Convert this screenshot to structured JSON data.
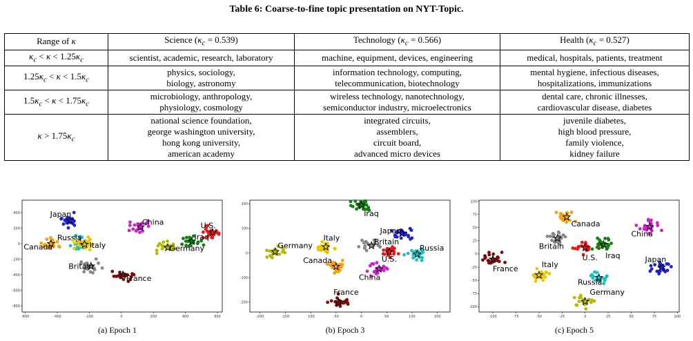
{
  "table": {
    "caption": "Table 6: Coarse-to-fine topic presentation on NYT-Topic.",
    "headers": [
      "Range of κ",
      "Science (κ_c = 0.539)",
      "Technology (κ_c = 0.566)",
      "Health (κ_c = 0.527)"
    ],
    "rows": [
      {
        "range": "κ_c < κ < 1.25κ_c",
        "science": [
          "scientist, academic, research, laboratory"
        ],
        "technology": [
          "machine, equipment, devices, engineering"
        ],
        "health": [
          "medical, hospitals, patients, treatment"
        ]
      },
      {
        "range": "1.25κ_c < κ < 1.5κ_c",
        "science": [
          "physics, sociology,",
          "biology, astronomy"
        ],
        "technology": [
          "information technology, computing,",
          "telecommunication, biotechnology"
        ],
        "health": [
          "mental hygiene, infectious diseases,",
          "hospitalizations, immunizations"
        ]
      },
      {
        "range": "1.5κ_c < κ < 1.75κ_c",
        "science": [
          "microbiology, anthropology,",
          "physiology, cosmology"
        ],
        "technology": [
          "wireless technology, nanotechnology,",
          "semiconductor industry, microelectronics"
        ],
        "health": [
          "dental care, chronic illnesses,",
          "cardiovascular disease, diabetes"
        ]
      },
      {
        "range": "κ > 1.75κ_c",
        "science": [
          "national science foundation,",
          "george washington university,",
          "hong kong university,",
          "american academy"
        ],
        "technology": [
          "integrated circuits,",
          "assemblers,",
          "circuit board,",
          "advanced micro devices"
        ],
        "health": [
          "juvenile diabetes,",
          "high blood pressure,",
          "family violence,",
          "kidney failure"
        ]
      }
    ]
  },
  "figures": [
    {
      "caption": "(a) Epoch 1",
      "chart_data": {
        "type": "scatter",
        "xlim": [
          -620,
          630
        ],
        "ylim": [
          -880,
          560
        ],
        "xticks": [
          -600,
          -400,
          -200,
          0,
          200,
          400,
          600
        ],
        "yticks": [
          -800,
          -600,
          -400,
          -200,
          0,
          200,
          400
        ],
        "clusters": [
          {
            "name": "Japan",
            "color": "#1f1fd9",
            "star": [
              -320,
              300
            ],
            "label_at": [
              -445,
              345
            ]
          },
          {
            "name": "China",
            "color": "#cc22cc",
            "star": [
              120,
              215
            ],
            "label_at": [
              130,
              245
            ]
          },
          {
            "name": "U.S.",
            "color": "#e81818",
            "star": [
              570,
              145
            ],
            "label_at": [
              495,
              200
            ]
          },
          {
            "name": "Iraq",
            "color": "#108010",
            "star": [
              440,
              30
            ],
            "label_at": [
              455,
              55
            ]
          },
          {
            "name": "Russia",
            "color": "#18c0c0",
            "star": [
              -260,
              20
            ],
            "label_at": [
              -400,
              45
            ]
          },
          {
            "name": "Canada",
            "color": "#f4a010",
            "star": [
              -440,
              0
            ],
            "label_at": [
              -610,
              -75
            ]
          },
          {
            "name": "Italy",
            "color": "#e8c800",
            "star": [
              -230,
              -10
            ],
            "label_at": [
              -200,
              -55
            ]
          },
          {
            "name": "Germany",
            "color": "#b8b800",
            "star": [
              290,
              -50
            ],
            "label_at": [
              300,
              -95
            ]
          },
          {
            "name": "Britain",
            "color": "#888888",
            "star": [
              -190,
              -290
            ],
            "label_at": [
              -330,
              -325
            ]
          },
          {
            "name": "France",
            "color": "#7a0c0c",
            "star": [
              10,
              -400
            ],
            "label_at": [
              30,
              -480
            ]
          }
        ]
      }
    },
    {
      "caption": "(b) Epoch 3",
      "chart_data": {
        "type": "scatter",
        "xlim": [
          -220,
          175
        ],
        "ylim": [
          -240,
          215
        ],
        "xticks": [
          -200,
          -150,
          -100,
          -50,
          0,
          50,
          100,
          150
        ],
        "yticks": [
          -200,
          -100,
          0,
          100,
          200
        ],
        "clusters": [
          {
            "name": "Iraq",
            "color": "#108010",
            "star": [
              0,
              195
            ],
            "label_at": [
              5,
              150
            ]
          },
          {
            "name": "Japan",
            "color": "#1f1fd9",
            "star": [
              80,
              80
            ],
            "label_at": [
              37,
              80
            ]
          },
          {
            "name": "Germany",
            "color": "#b8b800",
            "star": [
              -170,
              5
            ],
            "label_at": [
              -165,
              20
            ]
          },
          {
            "name": "Italy",
            "color": "#e8c800",
            "star": [
              -70,
              25
            ],
            "label_at": [
              -75,
              50
            ]
          },
          {
            "name": "Britain",
            "color": "#888888",
            "star": [
              20,
              30
            ],
            "label_at": [
              25,
              35
            ]
          },
          {
            "name": "U.S.",
            "color": "#e81818",
            "star": [
              55,
              5
            ],
            "label_at": [
              40,
              -35
            ]
          },
          {
            "name": "Russia",
            "color": "#18c0c0",
            "star": [
              110,
              -5
            ],
            "label_at": [
              115,
              10
            ]
          },
          {
            "name": "Canada",
            "color": "#f4a010",
            "star": [
              -50,
              -55
            ],
            "label_at": [
              -115,
              -40
            ]
          },
          {
            "name": "China",
            "color": "#cc22cc",
            "star": [
              35,
              -65
            ],
            "label_at": [
              -5,
              -110
            ]
          },
          {
            "name": "France",
            "color": "#7a0c0c",
            "star": [
              -45,
              -200
            ],
            "label_at": [
              -55,
              -170
            ]
          }
        ]
      }
    },
    {
      "caption": "(c) Epoch 5",
      "chart_data": {
        "type": "scatter",
        "xlim": [
          -115,
          102
        ],
        "ylim": [
          -110,
          102
        ],
        "xticks": [
          -100,
          -75,
          -50,
          -25,
          0,
          25,
          50,
          75,
          100
        ],
        "yticks": [
          -100,
          -75,
          -50,
          -25,
          0,
          25,
          50,
          75,
          100
        ],
        "clusters": [
          {
            "name": "Canada",
            "color": "#f4a010",
            "star": [
              -20,
              70
            ],
            "label_at": [
              -15,
              52
            ]
          },
          {
            "name": "China",
            "color": "#cc22cc",
            "star": [
              70,
              52
            ],
            "label_at": [
              50,
              33
            ]
          },
          {
            "name": "Britain",
            "color": "#888888",
            "star": [
              -30,
              30
            ],
            "label_at": [
              -50,
              10
            ]
          },
          {
            "name": "U.S.",
            "color": "#e81818",
            "star": [
              0,
              12
            ],
            "label_at": [
              -3,
              -12
            ]
          },
          {
            "name": "Iraq",
            "color": "#108010",
            "star": [
              20,
              18
            ],
            "label_at": [
              22,
              -8
            ]
          },
          {
            "name": "France",
            "color": "#7a0c0c",
            "star": [
              -100,
              -10
            ],
            "label_at": [
              -100,
              -33
            ]
          },
          {
            "name": "Italy",
            "color": "#e8c800",
            "star": [
              -50,
              -40
            ],
            "label_at": [
              -47,
              -25
            ]
          },
          {
            "name": "Japan",
            "color": "#1f1fd9",
            "star": [
              83,
              -25
            ],
            "label_at": [
              65,
              -15
            ]
          },
          {
            "name": "Russia",
            "color": "#18c0c0",
            "star": [
              15,
              -45
            ],
            "label_at": [
              -8,
              -58
            ]
          },
          {
            "name": "Germany",
            "color": "#b8b800",
            "star": [
              0,
              -90
            ],
            "label_at": [
              5,
              -77
            ]
          }
        ]
      }
    }
  ]
}
